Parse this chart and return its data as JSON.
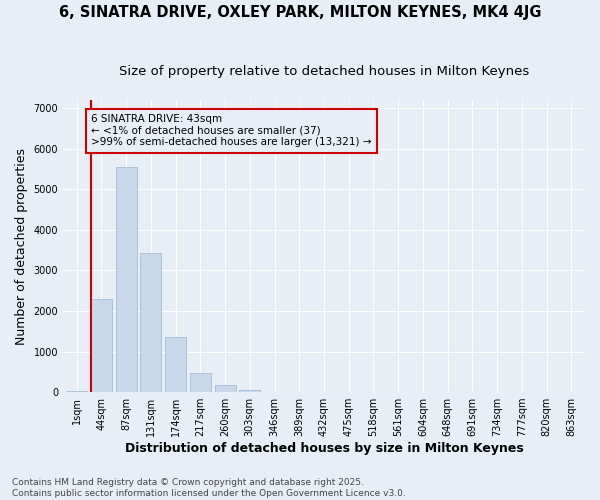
{
  "title1": "6, SINATRA DRIVE, OXLEY PARK, MILTON KEYNES, MK4 4JG",
  "title2": "Size of property relative to detached houses in Milton Keynes",
  "xlabel": "Distribution of detached houses by size in Milton Keynes",
  "ylabel": "Number of detached properties",
  "categories": [
    "1sqm",
    "44sqm",
    "87sqm",
    "131sqm",
    "174sqm",
    "217sqm",
    "260sqm",
    "303sqm",
    "346sqm",
    "389sqm",
    "432sqm",
    "475sqm",
    "518sqm",
    "561sqm",
    "604sqm",
    "648sqm",
    "691sqm",
    "734sqm",
    "777sqm",
    "820sqm",
    "863sqm"
  ],
  "values": [
    37,
    2300,
    5550,
    3430,
    1360,
    460,
    165,
    55,
    8,
    2,
    0,
    0,
    0,
    0,
    0,
    0,
    0,
    0,
    0,
    0,
    0
  ],
  "bar_color": "#c8d8ea",
  "bar_edgecolor": "#9ab5cc",
  "highlight_line_color": "#cc0000",
  "annotation_text": "6 SINATRA DRIVE: 43sqm\n← <1% of detached houses are smaller (37)\n>99% of semi-detached houses are larger (13,321) →",
  "annotation_box_edgecolor": "#cc0000",
  "background_color": "#e8eef5",
  "grid_color": "#ffffff",
  "ylim": [
    0,
    7200
  ],
  "yticks": [
    0,
    1000,
    2000,
    3000,
    4000,
    5000,
    6000,
    7000
  ],
  "footnote": "Contains HM Land Registry data © Crown copyright and database right 2025.\nContains public sector information licensed under the Open Government Licence v3.0.",
  "title_fontsize": 10.5,
  "subtitle_fontsize": 9.5,
  "axis_label_fontsize": 9,
  "tick_fontsize": 7,
  "annotation_fontsize": 7.5,
  "footnote_fontsize": 6.5
}
